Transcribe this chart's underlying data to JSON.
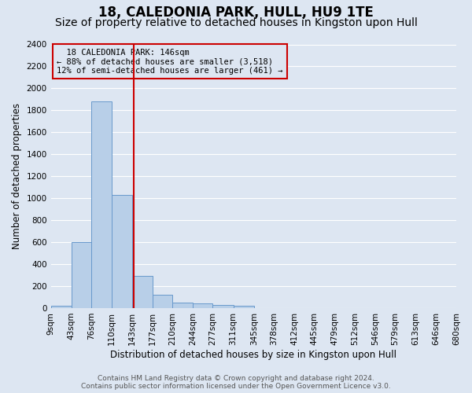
{
  "title": "18, CALEDONIA PARK, HULL, HU9 1TE",
  "subtitle": "Size of property relative to detached houses in Kingston upon Hull",
  "xlabel": "Distribution of detached houses by size in Kingston upon Hull",
  "ylabel": "Number of detached properties",
  "footer_line1": "Contains HM Land Registry data © Crown copyright and database right 2024.",
  "footer_line2": "Contains public sector information licensed under the Open Government Licence v3.0.",
  "annotation_line1": "18 CALEDONIA PARK: 146sqm",
  "annotation_line2": "← 88% of detached houses are smaller (3,518)",
  "annotation_line3": "12% of semi-detached houses are larger (461) →",
  "bar_edges": [
    9,
    43,
    76,
    110,
    143,
    177,
    210,
    244,
    277,
    311,
    345,
    378,
    412,
    445,
    479,
    512,
    546,
    579,
    613,
    646,
    680
  ],
  "bar_heights": [
    20,
    600,
    1880,
    1030,
    290,
    120,
    50,
    40,
    30,
    20,
    0,
    0,
    0,
    0,
    0,
    0,
    0,
    0,
    0,
    0
  ],
  "bar_color": "#b8cfe8",
  "bar_edge_color": "#6899cc",
  "vline_color": "#cc0000",
  "vline_x": 146,
  "annotation_box_edgecolor": "#cc0000",
  "ylim_min": 0,
  "ylim_max": 2400,
  "yticks": [
    0,
    200,
    400,
    600,
    800,
    1000,
    1200,
    1400,
    1600,
    1800,
    2000,
    2200,
    2400
  ],
  "bg_color": "#dde6f2",
  "grid_color": "#ffffff",
  "title_fontsize": 12,
  "subtitle_fontsize": 10,
  "ylabel_fontsize": 8.5,
  "xlabel_fontsize": 8.5,
  "tick_fontsize": 7.5,
  "annotation_fontsize": 7.5,
  "footer_fontsize": 6.5
}
